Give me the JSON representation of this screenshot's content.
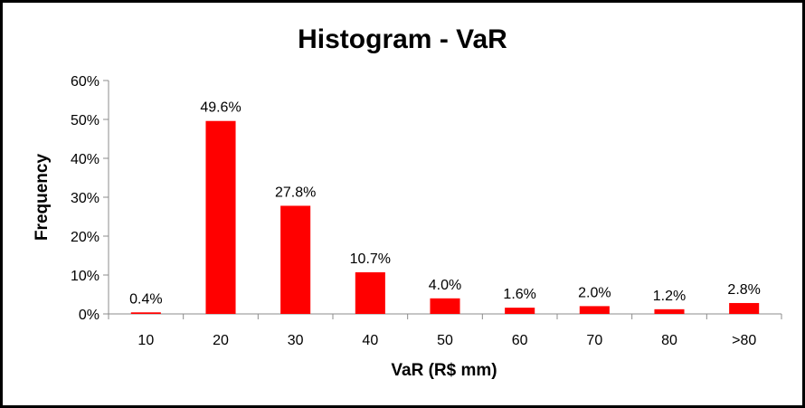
{
  "chart_data": {
    "type": "bar",
    "title": "Histogram - VaR",
    "xlabel": "VaR (R$ mm)",
    "ylabel": "Frequency",
    "categories": [
      "10",
      "20",
      "30",
      "40",
      "50",
      "60",
      "70",
      "80",
      ">80"
    ],
    "values": [
      0.4,
      49.6,
      27.8,
      10.7,
      4.0,
      1.6,
      2.0,
      1.2,
      2.8
    ],
    "data_labels": [
      "0.4%",
      "49.6%",
      "27.8%",
      "10.7%",
      "4.0%",
      "1.6%",
      "2.0%",
      "1.2%",
      "2.8%"
    ],
    "yticks": [
      0,
      10,
      20,
      30,
      40,
      50,
      60
    ],
    "ytick_labels": [
      "0%",
      "10%",
      "20%",
      "30%",
      "40%",
      "50%",
      "60%"
    ],
    "ylim": [
      0,
      60
    ],
    "grid": false,
    "legend": "none",
    "bar_color": "#FF0000"
  }
}
